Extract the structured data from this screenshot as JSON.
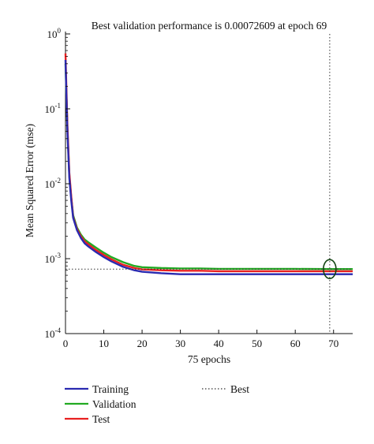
{
  "chart_data": {
    "type": "line",
    "title": "Best validation performance is 0.00072609 at epoch 69",
    "xlabel": "75 epochs",
    "ylabel": "Mean Squared Error (mse)",
    "xscale": "linear",
    "yscale": "log",
    "xlim": [
      0,
      75
    ],
    "ylim": [
      0.0001,
      1
    ],
    "x_ticks": [
      0,
      10,
      20,
      30,
      40,
      50,
      60,
      70
    ],
    "y_ticks": [
      {
        "value": 1,
        "base": "10",
        "exp": "0"
      },
      {
        "value": 0.1,
        "base": "10",
        "exp": "-1"
      },
      {
        "value": 0.01,
        "base": "10",
        "exp": "-2"
      },
      {
        "value": 0.001,
        "base": "10",
        "exp": "-3"
      },
      {
        "value": 0.0001,
        "base": "10",
        "exp": "-4"
      }
    ],
    "grid": false,
    "legend_position": "bottom",
    "best": {
      "epoch": 69,
      "value": 0.00072609
    },
    "series": [
      {
        "name": "Training",
        "color": "#2a2ab0",
        "x": [
          0,
          0.5,
          1,
          1.5,
          2,
          3,
          4,
          5,
          6,
          8,
          10,
          12,
          15,
          18,
          20,
          25,
          30,
          35,
          40,
          50,
          60,
          70,
          75
        ],
        "y": [
          0.45,
          0.05,
          0.012,
          0.006,
          0.0035,
          0.0024,
          0.0019,
          0.0016,
          0.00145,
          0.00122,
          0.00105,
          0.00092,
          0.00078,
          0.0007,
          0.00067,
          0.00064,
          0.00062,
          0.00062,
          0.00062,
          0.00062,
          0.00062,
          0.00062,
          0.00062
        ]
      },
      {
        "name": "Validation",
        "color": "#22aa22",
        "x": [
          0,
          0.5,
          1,
          1.5,
          2,
          3,
          4,
          5,
          6,
          8,
          10,
          12,
          15,
          18,
          20,
          25,
          30,
          35,
          40,
          50,
          60,
          70,
          75
        ],
        "y": [
          0.4,
          0.055,
          0.013,
          0.0065,
          0.0038,
          0.0026,
          0.0021,
          0.0018,
          0.00165,
          0.0014,
          0.0012,
          0.00105,
          0.0009,
          0.0008,
          0.00077,
          0.00075,
          0.00074,
          0.00074,
          0.00073,
          0.00073,
          0.00073,
          0.000726,
          0.000726
        ]
      },
      {
        "name": "Test",
        "color": "#e82020",
        "x": [
          0,
          0.5,
          1,
          1.5,
          2,
          3,
          4,
          5,
          6,
          8,
          10,
          12,
          15,
          18,
          20,
          25,
          30,
          35,
          40,
          50,
          60,
          70,
          75
        ],
        "y": [
          0.55,
          0.06,
          0.014,
          0.0068,
          0.0036,
          0.0025,
          0.002,
          0.0017,
          0.00155,
          0.0013,
          0.00112,
          0.00098,
          0.00083,
          0.00075,
          0.00072,
          0.0007,
          0.00069,
          0.00069,
          0.00068,
          0.00068,
          0.00068,
          0.00068,
          0.00068
        ]
      }
    ],
    "legend": [
      {
        "label": "Training",
        "color": "#2a2ab0",
        "style": "solid"
      },
      {
        "label": "Validation",
        "color": "#22aa22",
        "style": "solid"
      },
      {
        "label": "Test",
        "color": "#e82020",
        "style": "solid"
      },
      {
        "label": "Best",
        "color": "#333333",
        "style": "dotted"
      }
    ]
  }
}
